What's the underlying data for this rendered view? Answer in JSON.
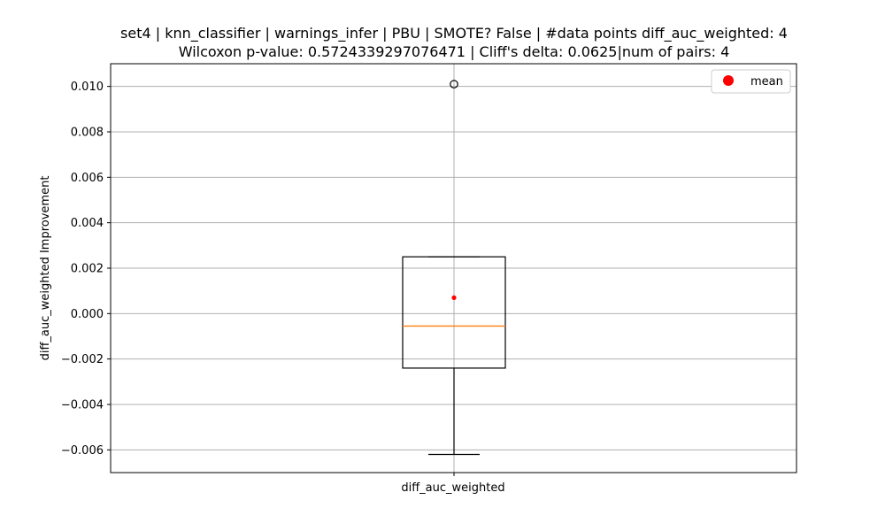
{
  "chart_data": {
    "type": "box",
    "title_line1": "set4 | knn_classifier | warnings_infer | PBU | SMOTE? False | #data points diff_auc_weighted: 4",
    "title_line2": "Wilcoxon p-value: 0.5724339297076471 | Cliff's delta: 0.0625|num of pairs: 4",
    "xlabel": "diff_auc_weighted",
    "ylabel": "diff_auc_weighted Improvement",
    "ylim": [
      -0.007,
      0.011
    ],
    "yticks": [
      0.01,
      0.008,
      0.006,
      0.004,
      0.002,
      0.0,
      -0.002,
      -0.004,
      -0.006
    ],
    "ytick_labels": [
      "0.010",
      "0.008",
      "0.006",
      "0.004",
      "0.002",
      "0.000",
      "−0.002",
      "−0.004",
      "−0.006"
    ],
    "grid": true,
    "box": {
      "category": "diff_auc_weighted",
      "whisker_low": -0.0062,
      "q1": -0.0024,
      "median": -0.00055,
      "q3": 0.0025,
      "whisker_high": 0.0025,
      "outliers": [
        0.0101
      ],
      "mean": 0.0007
    },
    "legend": {
      "placement": "top-right",
      "entries": [
        {
          "label": "mean",
          "color": "#ff0000",
          "marker": "circle"
        }
      ]
    },
    "colors": {
      "median": "#ff7f0e",
      "mean": "#ff0000",
      "box": "#000000",
      "grid": "#b0b0b0"
    }
  }
}
